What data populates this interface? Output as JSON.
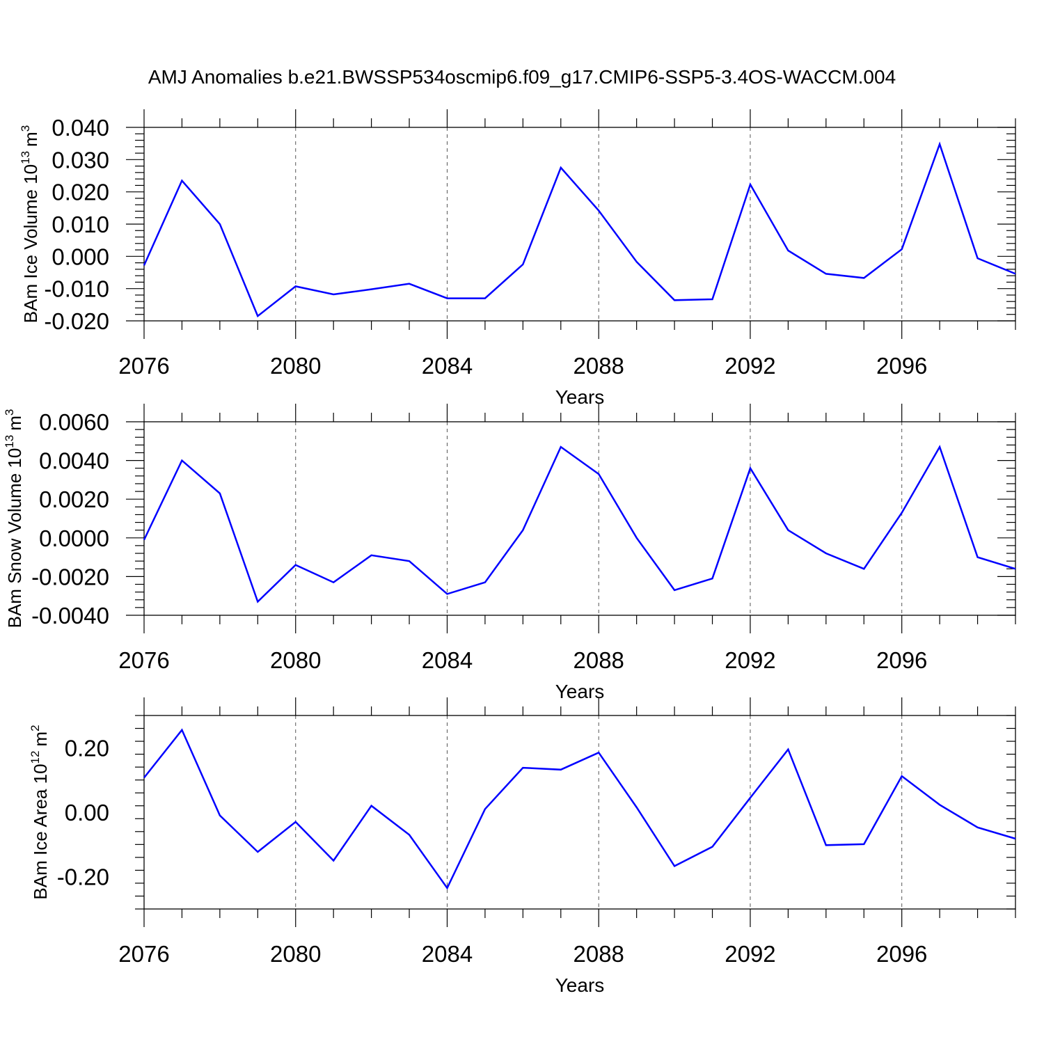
{
  "title": "AMJ Anomalies b.e21.BWSSP534oscmip6.f09_g17.CMIP6-SSP5-3.4OS-WACCM.004",
  "line_color": "#0000ff",
  "chart_data": [
    {
      "type": "line",
      "xlabel": "Years",
      "ylabel": {
        "text": "BAm Ice Volume 10",
        "exponent": "13",
        "unit": "m",
        "unit_exponent": "3"
      },
      "xlim": [
        2076,
        2099
      ],
      "ylim": [
        -0.02,
        0.04
      ],
      "xticks": [
        "2076",
        "2080",
        "2084",
        "2088",
        "2092",
        "2096"
      ],
      "yticks": [
        "0.040",
        "0.030",
        "0.020",
        "0.010",
        "0.000",
        "-0.010",
        "-0.020"
      ],
      "x": [
        2076,
        2077,
        2078,
        2079,
        2080,
        2081,
        2082,
        2083,
        2084,
        2085,
        2086,
        2087,
        2088,
        2089,
        2090,
        2091,
        2092,
        2093,
        2094,
        2095,
        2096,
        2097,
        2098,
        2099
      ],
      "values": [
        -0.0028,
        0.0235,
        0.01,
        -0.0185,
        -0.0093,
        -0.0118,
        -0.0102,
        -0.0085,
        -0.013,
        -0.013,
        -0.0025,
        0.0275,
        0.0142,
        -0.0017,
        -0.0136,
        -0.0133,
        0.0223,
        0.0018,
        -0.0054,
        -0.0067,
        0.0022,
        0.0348,
        -0.0006,
        -0.0054
      ],
      "grid": "dashed vertical lines at labeled years"
    },
    {
      "type": "line",
      "xlabel": "Years",
      "ylabel": {
        "text": "BAm Snow Volume 10",
        "exponent": "13",
        "unit": "m",
        "unit_exponent": "3"
      },
      "xlim": [
        2076,
        2099
      ],
      "ylim": [
        -0.004,
        0.006
      ],
      "xticks": [
        "2076",
        "2080",
        "2084",
        "2088",
        "2092",
        "2096"
      ],
      "yticks": [
        "0.0060",
        "0.0040",
        "0.0020",
        "0.0000",
        "-0.0020",
        "-0.0040"
      ],
      "x": [
        2076,
        2077,
        2078,
        2079,
        2080,
        2081,
        2082,
        2083,
        2084,
        2085,
        2086,
        2087,
        2088,
        2089,
        2090,
        2091,
        2092,
        2093,
        2094,
        2095,
        2096,
        2097,
        2098,
        2099
      ],
      "values": [
        -0.0001,
        0.004,
        0.0023,
        -0.0033,
        -0.0014,
        -0.0023,
        -0.0009,
        -0.0012,
        -0.0029,
        -0.0023,
        0.0004,
        0.0047,
        0.0033,
        0.0,
        -0.0027,
        -0.0021,
        0.0036,
        0.0004,
        -0.0008,
        -0.0016,
        0.0013,
        0.0047,
        -0.001,
        -0.0016
      ],
      "grid": "dashed vertical lines at labeled years"
    },
    {
      "type": "line",
      "xlabel": "Years",
      "ylabel": {
        "text": "BAm Ice Area 10",
        "exponent": "12",
        "unit": "m",
        "unit_exponent": "2"
      },
      "xlim": [
        2076,
        2099
      ],
      "ylim": [
        -0.3,
        0.3
      ],
      "xticks": [
        "2076",
        "2080",
        "2084",
        "2088",
        "2092",
        "2096"
      ],
      "yticks": [
        "0.20",
        "0.00",
        "-0.20"
      ],
      "x": [
        2076,
        2077,
        2078,
        2079,
        2080,
        2081,
        2082,
        2083,
        2084,
        2085,
        2086,
        2087,
        2088,
        2089,
        2090,
        2091,
        2092,
        2093,
        2094,
        2095,
        2096,
        2097,
        2098,
        2099
      ],
      "values": [
        0.107,
        0.255,
        -0.01,
        -0.123,
        -0.03,
        -0.15,
        0.02,
        -0.07,
        -0.235,
        0.01,
        0.138,
        0.132,
        0.185,
        0.015,
        -0.167,
        -0.107,
        0.045,
        0.195,
        -0.102,
        -0.099,
        0.112,
        0.023,
        -0.047,
        -0.082
      ],
      "grid": "dashed vertical lines at labeled years"
    }
  ]
}
